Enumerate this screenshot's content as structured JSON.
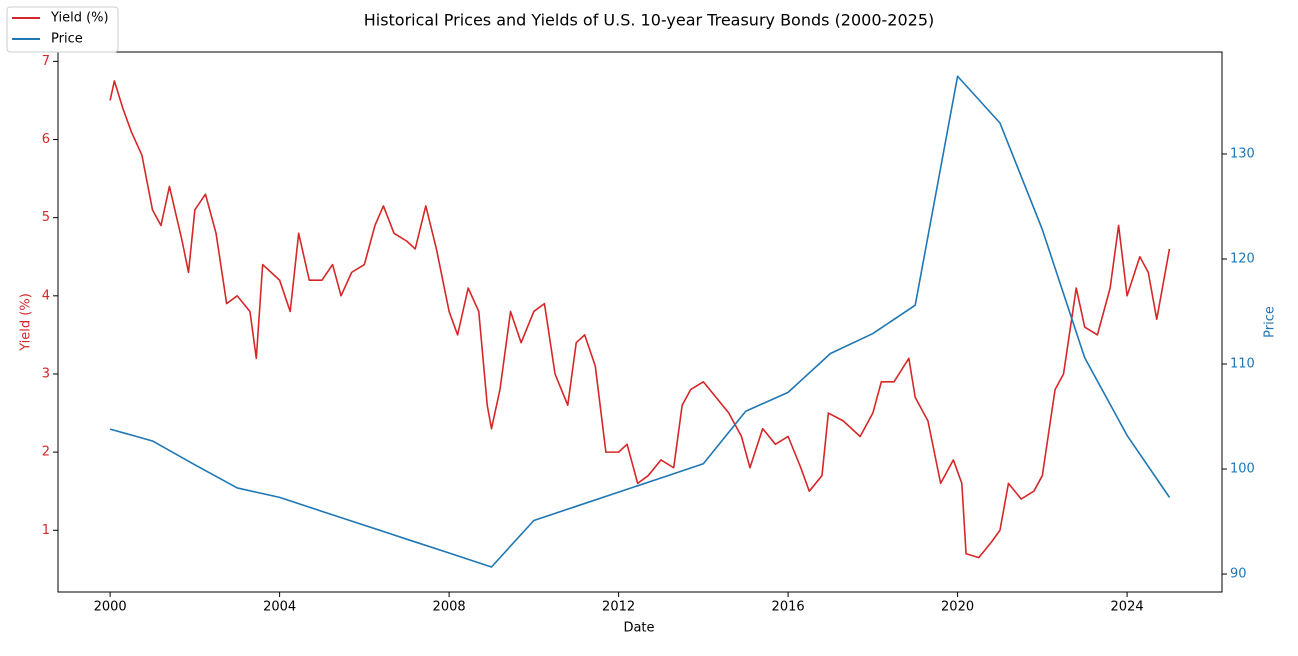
{
  "chart_data": {
    "type": "line",
    "title": "Historical Prices and Yields of U.S. 10-year Treasury Bonds (2000-2025)",
    "x_label": "Date",
    "y_label": "Yield (%)",
    "y2_label": "Price",
    "xlim": [
      1998.77,
      2026.24
    ],
    "xticks": [
      2000,
      2004,
      2008,
      2012,
      2016,
      2020,
      2024
    ],
    "ylim": [
      0.21,
      7.12
    ],
    "yticks": [
      1,
      2,
      3,
      4,
      5,
      6,
      7
    ],
    "y2lim": [
      88.29,
      139.71
    ],
    "y2ticks": [
      90,
      100,
      110,
      120,
      130
    ],
    "grid": false,
    "legend": "upper left",
    "series": [
      {
        "name": "Yield (%)",
        "color": "#d62728",
        "x": [
          2000.0,
          2000.1,
          2000.3,
          2000.5,
          2000.75,
          2001.0,
          2001.2,
          2001.4,
          2001.7,
          2001.85,
          2002.0,
          2002.25,
          2002.5,
          2002.75,
          2003.0,
          2003.3,
          2003.45,
          2003.6,
          2003.8,
          2004.0,
          2004.25,
          2004.45,
          2004.7,
          2005.0,
          2005.25,
          2005.45,
          2005.7,
          2006.0,
          2006.25,
          2006.45,
          2006.7,
          2007.0,
          2007.2,
          2007.45,
          2007.7,
          2008.0,
          2008.2,
          2008.45,
          2008.7,
          2008.9,
          2009.0,
          2009.2,
          2009.45,
          2009.7,
          2010.0,
          2010.25,
          2010.5,
          2010.8,
          2011.0,
          2011.2,
          2011.45,
          2011.7,
          2012.0,
          2012.2,
          2012.45,
          2012.7,
          2013.0,
          2013.3,
          2013.5,
          2013.7,
          2014.0,
          2014.3,
          2014.6,
          2014.9,
          2015.1,
          2015.4,
          2015.7,
          2016.0,
          2016.3,
          2016.5,
          2016.8,
          2016.95,
          2017.3,
          2017.7,
          2018.0,
          2018.2,
          2018.5,
          2018.85,
          2019.0,
          2019.3,
          2019.6,
          2019.9,
          2020.1,
          2020.2,
          2020.5,
          2020.8,
          2021.0,
          2021.2,
          2021.5,
          2021.8,
          2022.0,
          2022.3,
          2022.5,
          2022.8,
          2023.0,
          2023.3,
          2023.6,
          2023.8,
          2024.0,
          2024.3,
          2024.5,
          2024.7,
          2024.9,
          2025.0
        ],
        "values": [
          6.5,
          6.75,
          6.4,
          6.1,
          5.8,
          5.1,
          4.9,
          5.4,
          4.7,
          4.3,
          5.1,
          5.3,
          4.8,
          3.9,
          4.0,
          3.8,
          3.2,
          4.4,
          4.3,
          4.2,
          3.8,
          4.8,
          4.2,
          4.2,
          4.4,
          4.0,
          4.3,
          4.4,
          4.9,
          5.15,
          4.8,
          4.7,
          4.6,
          5.15,
          4.6,
          3.8,
          3.5,
          4.1,
          3.8,
          2.6,
          2.3,
          2.8,
          3.8,
          3.4,
          3.8,
          3.9,
          3.0,
          2.6,
          3.4,
          3.5,
          3.1,
          2.0,
          2.0,
          2.1,
          1.6,
          1.7,
          1.9,
          1.8,
          2.6,
          2.8,
          2.9,
          2.7,
          2.5,
          2.2,
          1.8,
          2.3,
          2.1,
          2.2,
          1.8,
          1.5,
          1.7,
          2.5,
          2.4,
          2.2,
          2.5,
          2.9,
          2.9,
          3.2,
          2.7,
          2.4,
          1.6,
          1.9,
          1.6,
          0.7,
          0.65,
          0.85,
          1.0,
          1.6,
          1.4,
          1.5,
          1.7,
          2.8,
          3.0,
          4.1,
          3.6,
          3.5,
          4.1,
          4.9,
          4.0,
          4.5,
          4.3,
          3.7,
          4.3,
          4.6
        ]
      },
      {
        "name": "Price",
        "color": "#1f77b4",
        "axis": "y2",
        "x": [
          2000,
          2001,
          2002,
          2003,
          2004,
          2005,
          2006,
          2007,
          2008,
          2009,
          2010,
          2011,
          2012,
          2013,
          2014,
          2015,
          2016,
          2017,
          2018,
          2019,
          2020,
          2021,
          2022,
          2023,
          2024,
          2025
        ],
        "values": [
          103.8,
          102.67,
          100.4,
          98.2,
          97.3,
          95.97,
          94.65,
          93.32,
          92.0,
          90.67,
          95.1,
          96.45,
          97.8,
          99.15,
          100.5,
          105.5,
          107.3,
          111.0,
          112.9,
          115.6,
          137.4,
          132.95,
          122.8,
          110.6,
          103.2,
          97.3
        ]
      }
    ]
  }
}
